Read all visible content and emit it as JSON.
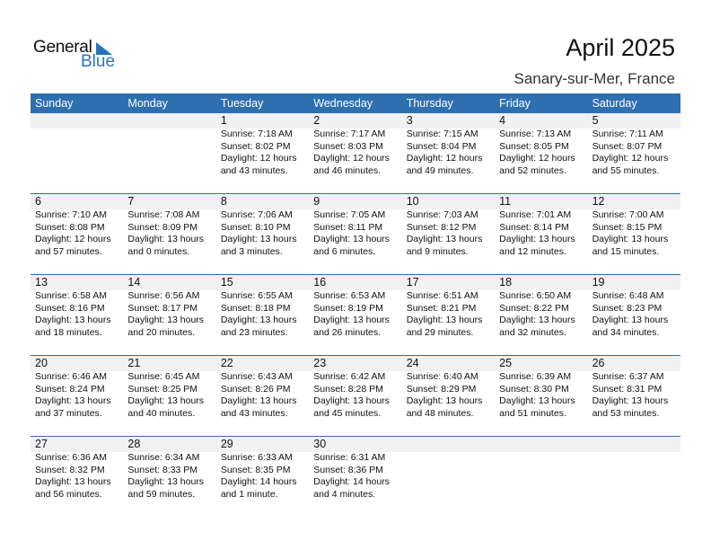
{
  "logo": {
    "text1": "General",
    "text2": "Blue"
  },
  "title": "April 2025",
  "subtitle": "Sanary-sur-Mer, France",
  "colors": {
    "header": "#2e6fb0",
    "strip": "#f1f1f1",
    "logo_blue": "#2a73b8"
  },
  "days": [
    "Sunday",
    "Monday",
    "Tuesday",
    "Wednesday",
    "Thursday",
    "Friday",
    "Saturday"
  ],
  "weeks": [
    [
      null,
      null,
      {
        "day": "1",
        "sunrise": "Sunrise: 7:18 AM",
        "sunset": "Sunset: 8:02 PM",
        "daylight": "Daylight: 12 hours",
        "minutes": "and 43 minutes."
      },
      {
        "day": "2",
        "sunrise": "Sunrise: 7:17 AM",
        "sunset": "Sunset: 8:03 PM",
        "daylight": "Daylight: 12 hours",
        "minutes": "and 46 minutes."
      },
      {
        "day": "3",
        "sunrise": "Sunrise: 7:15 AM",
        "sunset": "Sunset: 8:04 PM",
        "daylight": "Daylight: 12 hours",
        "minutes": "and 49 minutes."
      },
      {
        "day": "4",
        "sunrise": "Sunrise: 7:13 AM",
        "sunset": "Sunset: 8:05 PM",
        "daylight": "Daylight: 12 hours",
        "minutes": "and 52 minutes."
      },
      {
        "day": "5",
        "sunrise": "Sunrise: 7:11 AM",
        "sunset": "Sunset: 8:07 PM",
        "daylight": "Daylight: 12 hours",
        "minutes": "and 55 minutes."
      }
    ],
    [
      {
        "day": "6",
        "sunrise": "Sunrise: 7:10 AM",
        "sunset": "Sunset: 8:08 PM",
        "daylight": "Daylight: 12 hours",
        "minutes": "and 57 minutes."
      },
      {
        "day": "7",
        "sunrise": "Sunrise: 7:08 AM",
        "sunset": "Sunset: 8:09 PM",
        "daylight": "Daylight: 13 hours",
        "minutes": "and 0 minutes."
      },
      {
        "day": "8",
        "sunrise": "Sunrise: 7:06 AM",
        "sunset": "Sunset: 8:10 PM",
        "daylight": "Daylight: 13 hours",
        "minutes": "and 3 minutes."
      },
      {
        "day": "9",
        "sunrise": "Sunrise: 7:05 AM",
        "sunset": "Sunset: 8:11 PM",
        "daylight": "Daylight: 13 hours",
        "minutes": "and 6 minutes."
      },
      {
        "day": "10",
        "sunrise": "Sunrise: 7:03 AM",
        "sunset": "Sunset: 8:12 PM",
        "daylight": "Daylight: 13 hours",
        "minutes": "and 9 minutes."
      },
      {
        "day": "11",
        "sunrise": "Sunrise: 7:01 AM",
        "sunset": "Sunset: 8:14 PM",
        "daylight": "Daylight: 13 hours",
        "minutes": "and 12 minutes."
      },
      {
        "day": "12",
        "sunrise": "Sunrise: 7:00 AM",
        "sunset": "Sunset: 8:15 PM",
        "daylight": "Daylight: 13 hours",
        "minutes": "and 15 minutes."
      }
    ],
    [
      {
        "day": "13",
        "sunrise": "Sunrise: 6:58 AM",
        "sunset": "Sunset: 8:16 PM",
        "daylight": "Daylight: 13 hours",
        "minutes": "and 18 minutes."
      },
      {
        "day": "14",
        "sunrise": "Sunrise: 6:56 AM",
        "sunset": "Sunset: 8:17 PM",
        "daylight": "Daylight: 13 hours",
        "minutes": "and 20 minutes."
      },
      {
        "day": "15",
        "sunrise": "Sunrise: 6:55 AM",
        "sunset": "Sunset: 8:18 PM",
        "daylight": "Daylight: 13 hours",
        "minutes": "and 23 minutes."
      },
      {
        "day": "16",
        "sunrise": "Sunrise: 6:53 AM",
        "sunset": "Sunset: 8:19 PM",
        "daylight": "Daylight: 13 hours",
        "minutes": "and 26 minutes."
      },
      {
        "day": "17",
        "sunrise": "Sunrise: 6:51 AM",
        "sunset": "Sunset: 8:21 PM",
        "daylight": "Daylight: 13 hours",
        "minutes": "and 29 minutes."
      },
      {
        "day": "18",
        "sunrise": "Sunrise: 6:50 AM",
        "sunset": "Sunset: 8:22 PM",
        "daylight": "Daylight: 13 hours",
        "minutes": "and 32 minutes."
      },
      {
        "day": "19",
        "sunrise": "Sunrise: 6:48 AM",
        "sunset": "Sunset: 8:23 PM",
        "daylight": "Daylight: 13 hours",
        "minutes": "and 34 minutes."
      }
    ],
    [
      {
        "day": "20",
        "sunrise": "Sunrise: 6:46 AM",
        "sunset": "Sunset: 8:24 PM",
        "daylight": "Daylight: 13 hours",
        "minutes": "and 37 minutes."
      },
      {
        "day": "21",
        "sunrise": "Sunrise: 6:45 AM",
        "sunset": "Sunset: 8:25 PM",
        "daylight": "Daylight: 13 hours",
        "minutes": "and 40 minutes."
      },
      {
        "day": "22",
        "sunrise": "Sunrise: 6:43 AM",
        "sunset": "Sunset: 8:26 PM",
        "daylight": "Daylight: 13 hours",
        "minutes": "and 43 minutes."
      },
      {
        "day": "23",
        "sunrise": "Sunrise: 6:42 AM",
        "sunset": "Sunset: 8:28 PM",
        "daylight": "Daylight: 13 hours",
        "minutes": "and 45 minutes."
      },
      {
        "day": "24",
        "sunrise": "Sunrise: 6:40 AM",
        "sunset": "Sunset: 8:29 PM",
        "daylight": "Daylight: 13 hours",
        "minutes": "and 48 minutes."
      },
      {
        "day": "25",
        "sunrise": "Sunrise: 6:39 AM",
        "sunset": "Sunset: 8:30 PM",
        "daylight": "Daylight: 13 hours",
        "minutes": "and 51 minutes."
      },
      {
        "day": "26",
        "sunrise": "Sunrise: 6:37 AM",
        "sunset": "Sunset: 8:31 PM",
        "daylight": "Daylight: 13 hours",
        "minutes": "and 53 minutes."
      }
    ],
    [
      {
        "day": "27",
        "sunrise": "Sunrise: 6:36 AM",
        "sunset": "Sunset: 8:32 PM",
        "daylight": "Daylight: 13 hours",
        "minutes": "and 56 minutes."
      },
      {
        "day": "28",
        "sunrise": "Sunrise: 6:34 AM",
        "sunset": "Sunset: 8:33 PM",
        "daylight": "Daylight: 13 hours",
        "minutes": "and 59 minutes."
      },
      {
        "day": "29",
        "sunrise": "Sunrise: 6:33 AM",
        "sunset": "Sunset: 8:35 PM",
        "daylight": "Daylight: 14 hours",
        "minutes": "and 1 minute."
      },
      {
        "day": "30",
        "sunrise": "Sunrise: 6:31 AM",
        "sunset": "Sunset: 8:36 PM",
        "daylight": "Daylight: 14 hours",
        "minutes": "and 4 minutes."
      },
      null,
      null,
      null
    ]
  ]
}
